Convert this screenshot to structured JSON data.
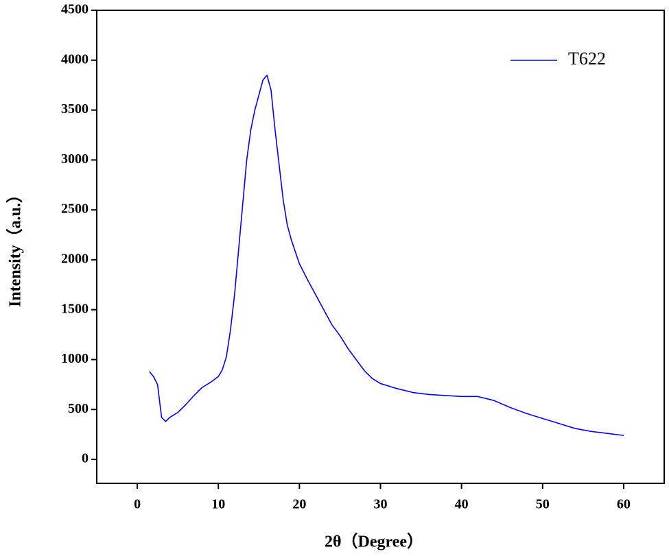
{
  "chart_data": {
    "type": "line",
    "x_label": "2θ（Degree）",
    "y_label": "Intensity（a.u.）",
    "legend": "upper right",
    "x": [
      1.5,
      2,
      2.5,
      3,
      3.5,
      4,
      5,
      6,
      7,
      8,
      9,
      10,
      10.5,
      11,
      11.5,
      12,
      12.5,
      13,
      13.5,
      14,
      14.5,
      15,
      15.5,
      16,
      16.5,
      17,
      17.5,
      18,
      18.5,
      19,
      20,
      21,
      22,
      23,
      24,
      25,
      26,
      27,
      28,
      29,
      30,
      32,
      34,
      36,
      38,
      40,
      42,
      44,
      46,
      48,
      50,
      52,
      54,
      56,
      58,
      60
    ],
    "series": [
      {
        "name": "T622",
        "color": "#0000ff",
        "values": [
          880,
          830,
          750,
          420,
          380,
          420,
          470,
          550,
          640,
          720,
          770,
          830,
          900,
          1030,
          1300,
          1650,
          2100,
          2550,
          3000,
          3300,
          3500,
          3650,
          3800,
          3850,
          3700,
          3300,
          2950,
          2600,
          2350,
          2200,
          1960,
          1800,
          1650,
          1500,
          1350,
          1240,
          1110,
          1000,
          890,
          810,
          760,
          710,
          670,
          650,
          640,
          630,
          630,
          590,
          520,
          460,
          410,
          360,
          310,
          280,
          260,
          240
        ]
      }
    ],
    "xlim": [
      -5,
      65
    ],
    "xticks": [
      0,
      10,
      20,
      30,
      40,
      50,
      60
    ],
    "ylim": [
      -240,
      4500
    ],
    "yticks": [
      0,
      500,
      1000,
      1500,
      2000,
      2500,
      3000,
      3500,
      4000,
      4500
    ]
  }
}
